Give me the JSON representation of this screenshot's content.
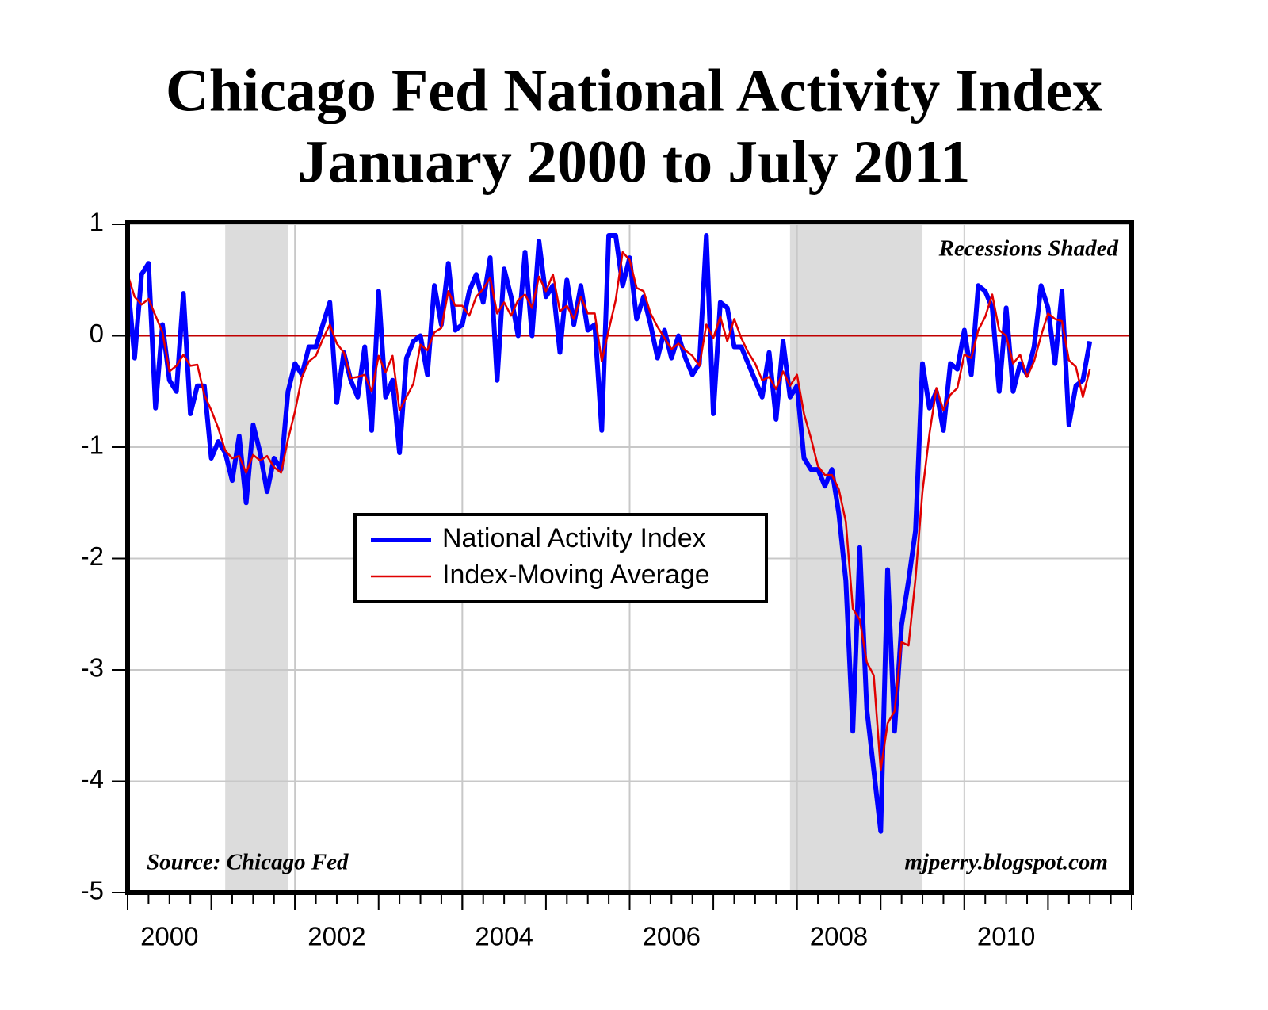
{
  "chart_data": {
    "type": "line",
    "title": "Chicago Fed National Activity Index",
    "subtitle": "January 2000 to July 2011",
    "annotations": [
      "Recessions Shaded",
      "Source: Chicago Fed",
      "mjperry.blogspot.com"
    ],
    "recessions": [
      [
        "2001-03",
        "2001-11"
      ],
      [
        "2007-12",
        "2009-06"
      ]
    ],
    "shade_color": "#dcdcdc",
    "reference_line": {
      "value": 0,
      "color": "#c00000"
    },
    "grid": true,
    "legend": "center",
    "xlim": [
      2000,
      2012
    ],
    "xticks": [
      2000,
      2002,
      2004,
      2006,
      2008,
      2010
    ],
    "ylim": [
      -5,
      1
    ],
    "yticks": [
      -5,
      -4,
      -3,
      -2,
      -1,
      0,
      1
    ],
    "x": [
      "2000-01",
      "2000-02",
      "2000-03",
      "2000-04",
      "2000-05",
      "2000-06",
      "2000-07",
      "2000-08",
      "2000-09",
      "2000-10",
      "2000-11",
      "2000-12",
      "2001-01",
      "2001-02",
      "2001-03",
      "2001-04",
      "2001-05",
      "2001-06",
      "2001-07",
      "2001-08",
      "2001-09",
      "2001-10",
      "2001-11",
      "2001-12",
      "2002-01",
      "2002-02",
      "2002-03",
      "2002-04",
      "2002-05",
      "2002-06",
      "2002-07",
      "2002-08",
      "2002-09",
      "2002-10",
      "2002-11",
      "2002-12",
      "2003-01",
      "2003-02",
      "2003-03",
      "2003-04",
      "2003-05",
      "2003-06",
      "2003-07",
      "2003-08",
      "2003-09",
      "2003-10",
      "2003-11",
      "2003-12",
      "2004-01",
      "2004-02",
      "2004-03",
      "2004-04",
      "2004-05",
      "2004-06",
      "2004-07",
      "2004-08",
      "2004-09",
      "2004-10",
      "2004-11",
      "2004-12",
      "2005-01",
      "2005-02",
      "2005-03",
      "2005-04",
      "2005-05",
      "2005-06",
      "2005-07",
      "2005-08",
      "2005-09",
      "2005-10",
      "2005-11",
      "2005-12",
      "2006-01",
      "2006-02",
      "2006-03",
      "2006-04",
      "2006-05",
      "2006-06",
      "2006-07",
      "2006-08",
      "2006-09",
      "2006-10",
      "2006-11",
      "2006-12",
      "2007-01",
      "2007-02",
      "2007-03",
      "2007-04",
      "2007-05",
      "2007-06",
      "2007-07",
      "2007-08",
      "2007-09",
      "2007-10",
      "2007-11",
      "2007-12",
      "2008-01",
      "2008-02",
      "2008-03",
      "2008-04",
      "2008-05",
      "2008-06",
      "2008-07",
      "2008-08",
      "2008-09",
      "2008-10",
      "2008-11",
      "2008-12",
      "2009-01",
      "2009-02",
      "2009-03",
      "2009-04",
      "2009-05",
      "2009-06",
      "2009-07",
      "2009-08",
      "2009-09",
      "2009-10",
      "2009-11",
      "2009-12",
      "2010-01",
      "2010-02",
      "2010-03",
      "2010-04",
      "2010-05",
      "2010-06",
      "2010-07",
      "2010-08",
      "2010-09",
      "2010-10",
      "2010-11",
      "2010-12",
      "2011-01",
      "2011-02",
      "2011-03",
      "2011-04",
      "2011-05",
      "2011-06",
      "2011-07"
    ],
    "series": [
      {
        "name": "National Activity Index",
        "color": "#0000ff",
        "width": 6,
        "values": [
          0.5,
          -0.2,
          0.55,
          0.65,
          -0.65,
          0.1,
          -0.4,
          -0.5,
          0.38,
          -0.7,
          -0.45,
          -0.45,
          -1.1,
          -0.95,
          -1.05,
          -1.3,
          -0.9,
          -1.5,
          -0.8,
          -1.05,
          -1.4,
          -1.1,
          -1.2,
          -0.5,
          -0.25,
          -0.35,
          -0.1,
          -0.1,
          0.1,
          0.3,
          -0.6,
          -0.15,
          -0.4,
          -0.55,
          -0.1,
          -0.85,
          0.4,
          -0.55,
          -0.4,
          -1.05,
          -0.2,
          -0.05,
          0.0,
          -0.35,
          0.45,
          0.1,
          0.65,
          0.05,
          0.1,
          0.4,
          0.55,
          0.3,
          0.7,
          -0.4,
          0.6,
          0.35,
          0.0,
          0.75,
          0.0,
          0.85,
          0.35,
          0.45,
          -0.15,
          0.5,
          0.1,
          0.45,
          0.05,
          0.1,
          -0.85,
          0.9,
          0.9,
          0.45,
          0.7,
          0.15,
          0.35,
          0.1,
          -0.2,
          0.05,
          -0.2,
          0.0,
          -0.2,
          -0.35,
          -0.25,
          0.9,
          -0.7,
          0.3,
          0.25,
          -0.1,
          -0.1,
          -0.25,
          -0.4,
          -0.55,
          -0.15,
          -0.75,
          -0.05,
          -0.55,
          -0.45,
          -1.1,
          -1.2,
          -1.2,
          -1.35,
          -1.2,
          -1.6,
          -2.2,
          -3.55,
          -1.9,
          -3.35,
          -3.9,
          -4.45,
          -2.1,
          -3.55,
          -2.6,
          -2.2,
          -1.75,
          -0.25,
          -0.65,
          -0.5,
          -0.85,
          -0.25,
          -0.3,
          0.05,
          -0.35,
          0.45,
          0.4,
          0.25,
          -0.5,
          0.25,
          -0.5,
          -0.25,
          -0.35,
          -0.1,
          0.45,
          0.25,
          -0.25,
          0.4,
          -0.8,
          -0.45,
          -0.4,
          -0.05
        ]
      },
      {
        "name": "Index-Moving Average",
        "color": "#e00000",
        "width": 2.5,
        "values": [
          0.55,
          0.35,
          0.28,
          0.33,
          0.18,
          0.03,
          -0.32,
          -0.27,
          -0.17,
          -0.27,
          -0.26,
          -0.53,
          -0.67,
          -0.83,
          -1.03,
          -1.1,
          -1.08,
          -1.23,
          -1.07,
          -1.12,
          -1.08,
          -1.18,
          -1.23,
          -0.93,
          -0.68,
          -0.37,
          -0.23,
          -0.18,
          -0.03,
          0.1,
          -0.07,
          -0.15,
          -0.38,
          -0.37,
          -0.35,
          -0.5,
          -0.18,
          -0.33,
          -0.18,
          -0.67,
          -0.55,
          -0.43,
          -0.08,
          -0.13,
          0.03,
          0.07,
          0.4,
          0.27,
          0.27,
          0.18,
          0.35,
          0.42,
          0.52,
          0.2,
          0.3,
          0.18,
          0.32,
          0.37,
          0.25,
          0.53,
          0.4,
          0.55,
          0.22,
          0.27,
          0.15,
          0.35,
          0.2,
          0.2,
          -0.23,
          0.05,
          0.32,
          0.75,
          0.68,
          0.43,
          0.4,
          0.2,
          0.08,
          -0.02,
          -0.12,
          -0.07,
          -0.13,
          -0.18,
          -0.27,
          0.1,
          -0.02,
          0.17,
          -0.05,
          0.15,
          -0.02,
          -0.15,
          -0.25,
          -0.4,
          -0.37,
          -0.48,
          -0.32,
          -0.45,
          -0.35,
          -0.7,
          -0.92,
          -1.17,
          -1.25,
          -1.25,
          -1.38,
          -1.67,
          -2.45,
          -2.55,
          -2.93,
          -3.05,
          -3.9,
          -3.48,
          -3.37,
          -2.75,
          -2.78,
          -2.18,
          -1.4,
          -0.88,
          -0.47,
          -0.67,
          -0.53,
          -0.47,
          -0.17,
          -0.2,
          0.05,
          0.17,
          0.37,
          0.05,
          0.0,
          -0.25,
          -0.17,
          -0.37,
          -0.23,
          0.0,
          0.2,
          0.15,
          0.13,
          -0.22,
          -0.28,
          -0.55,
          -0.3
        ]
      }
    ]
  }
}
